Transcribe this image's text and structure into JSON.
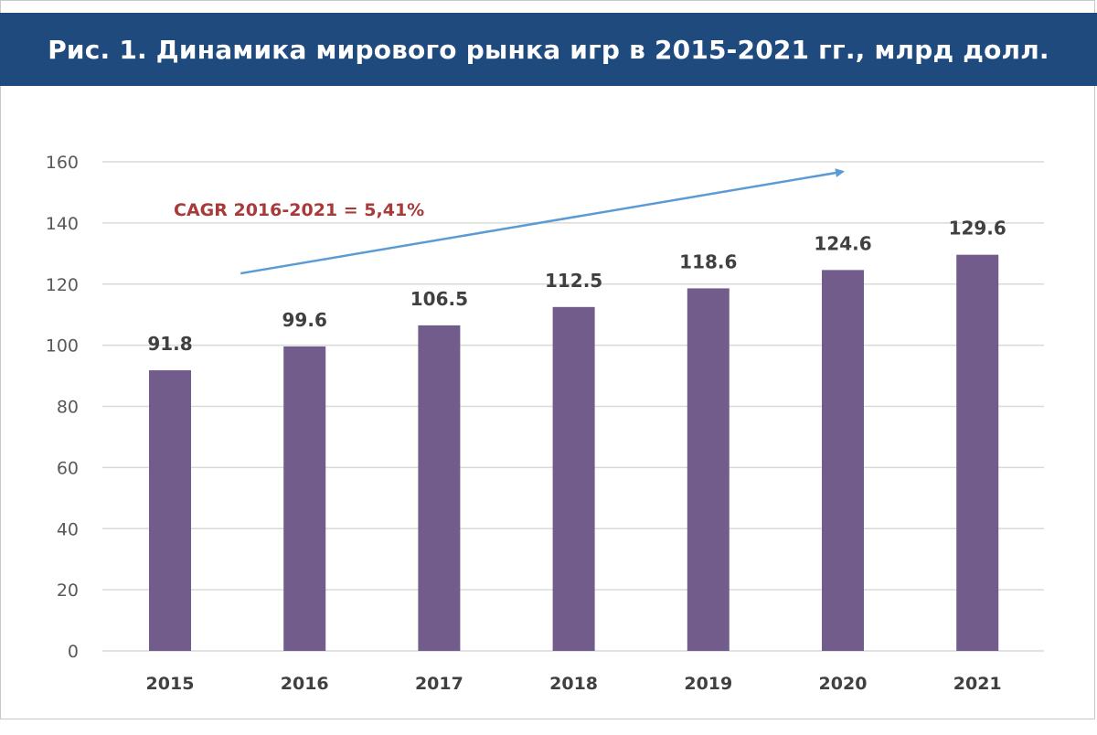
{
  "title": "Рис. 1. Динамика мирового рынка игр в 2015-2021 гг., млрд долл.",
  "annotation": "CAGR 2016-2021 = 5,41%",
  "colors": {
    "title_bar": "#1f4a7e",
    "bar": "#725c8c",
    "annotation": "#a83a3a",
    "arrow": "#5b9bd5",
    "grid": "#d9d9d9"
  },
  "chart_data": {
    "type": "bar",
    "categories": [
      "2015",
      "2016",
      "2017",
      "2018",
      "2019",
      "2020",
      "2021"
    ],
    "values": [
      91.8,
      99.6,
      106.5,
      112.5,
      118.6,
      124.6,
      129.6
    ],
    "data_labels": [
      "91.8",
      "99.6",
      "106.5",
      "112.5",
      "118.6",
      "124.6",
      "129.6"
    ],
    "yticks": [
      "0",
      "20",
      "40",
      "60",
      "80",
      "100",
      "120",
      "140",
      "160"
    ],
    "ylim": [
      0,
      160
    ],
    "grid": true,
    "legend": "none",
    "trend_arrow": {
      "from": {
        "x": "2016",
        "y": 122
      },
      "to": {
        "x": "2020",
        "y": 155
      }
    }
  }
}
